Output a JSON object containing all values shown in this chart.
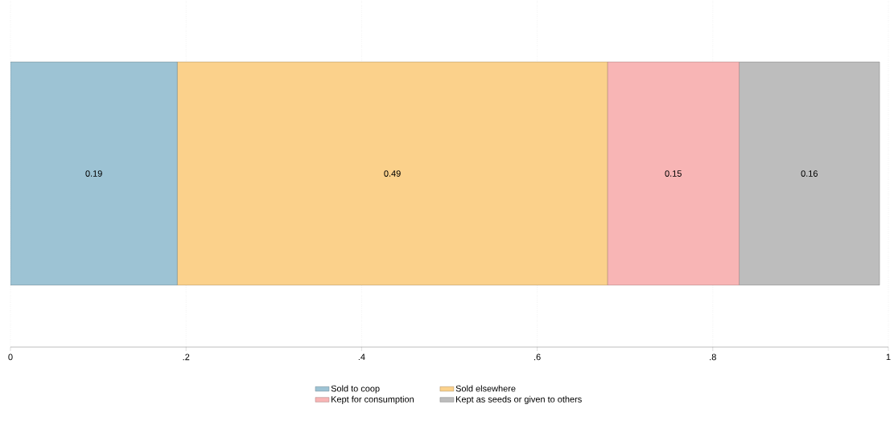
{
  "chart_data": {
    "type": "bar",
    "orientation": "horizontal",
    "stacked": true,
    "categories": [
      null
    ],
    "series": [
      {
        "name": "Sold to coop",
        "color": "#9dc3d4",
        "values": [
          0.19
        ]
      },
      {
        "name": "Sold elsewhere",
        "color": "#fbd18b",
        "values": [
          0.49
        ]
      },
      {
        "name": "Kept for consumption",
        "color": "#f8b5b5",
        "values": [
          0.15
        ]
      },
      {
        "name": "Kept as seeds or given to others",
        "color": "#bdbdbd",
        "values": [
          0.16
        ]
      }
    ],
    "xlim": [
      0,
      1
    ],
    "xticks": [
      0,
      {
        "value": 0.2,
        "label": ".2"
      },
      {
        "value": 0.4,
        "label": ".4"
      },
      {
        "value": 0.6,
        "label": ".6"
      },
      {
        "value": 0.8,
        "label": ".8"
      },
      1
    ],
    "grid": "x",
    "tick_labels": "x",
    "data_labels": true,
    "legend": "bottom"
  }
}
